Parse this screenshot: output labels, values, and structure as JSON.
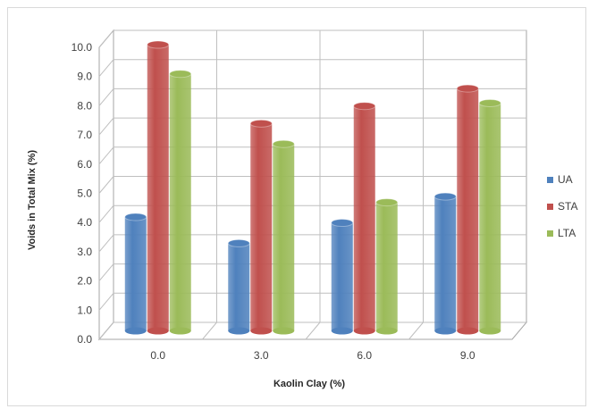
{
  "chart_data": {
    "type": "bar",
    "title": "",
    "xlabel": "Kaolin Clay (%)",
    "ylabel": "Voids in Total Mix (%)",
    "categories": [
      "0.0",
      "3.0",
      "6.0",
      "9.0"
    ],
    "ylim": [
      0,
      10
    ],
    "yticks": [
      "0.0",
      "1.0",
      "2.0",
      "3.0",
      "4.0",
      "5.0",
      "6.0",
      "7.0",
      "8.0",
      "9.0",
      "10.0"
    ],
    "grid": true,
    "style": "3d-cylinder",
    "legend_position": "right",
    "series": [
      {
        "name": "UA",
        "color": "#4f81bd",
        "values": [
          3.9,
          3.0,
          3.7,
          4.6
        ]
      },
      {
        "name": "STA",
        "color": "#c0504d",
        "values": [
          9.8,
          7.1,
          7.7,
          8.3
        ]
      },
      {
        "name": "LTA",
        "color": "#9bbb59",
        "values": [
          8.8,
          6.4,
          4.4,
          7.8
        ]
      }
    ]
  }
}
